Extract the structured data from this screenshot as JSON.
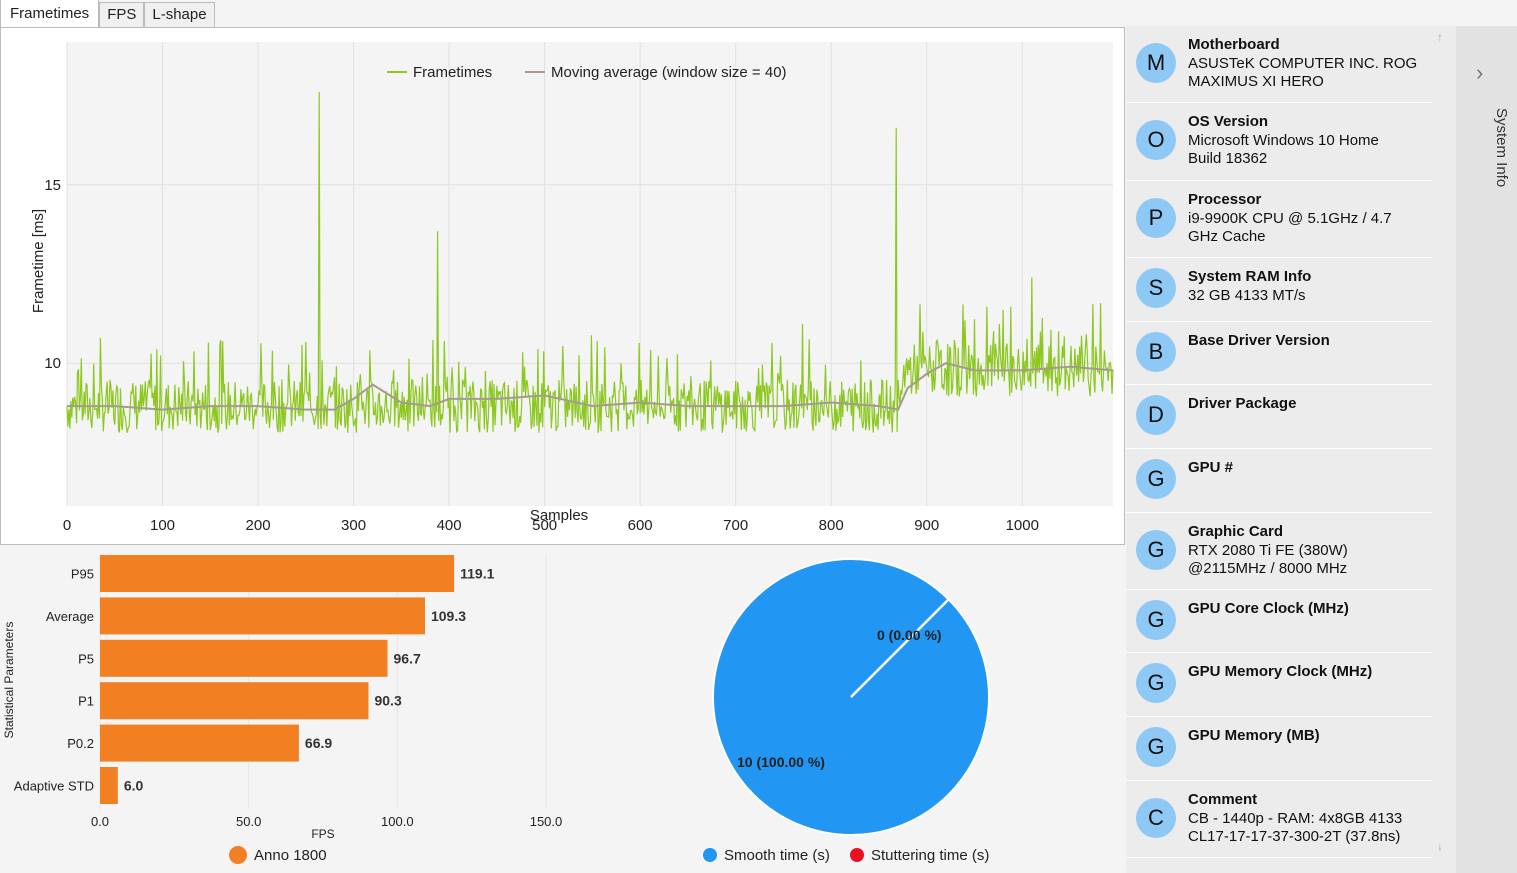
{
  "tabs": [
    "Frametimes",
    "FPS",
    "L-shape"
  ],
  "frametime_chart": {
    "ylabel": "Frametime [ms]",
    "xlabel": "Samples",
    "legend": [
      "Frametimes",
      "Moving average (window size = 40)"
    ],
    "x_ticks": [
      "0",
      "100",
      "200",
      "300",
      "400",
      "500",
      "600",
      "700",
      "800",
      "900",
      "1000"
    ],
    "y_ticks": [
      "10",
      "15"
    ],
    "colors": {
      "frametimes": "#8cc820",
      "moving_average": "#a59a90"
    }
  },
  "chart_data": [
    {
      "type": "line",
      "title": "",
      "xlabel": "Samples",
      "ylabel": "Frametime [ms]",
      "xlim": [
        0,
        1095
      ],
      "ylim": [
        6,
        19
      ],
      "series": [
        {
          "name": "Frametimes",
          "description": "noisy around 8.8 ms for samples 0-870, around 9.8 ms for 880-1095",
          "spikes": [
            [
              264,
              17.6
            ],
            [
              388,
              13.7
            ],
            [
              868,
              16.6
            ],
            [
              250,
              10.6
            ],
            [
              160,
              10.5
            ],
            [
              770,
              11.1
            ],
            [
              940,
              11.2
            ],
            [
              1010,
              12.4
            ],
            [
              970,
              10.9
            ],
            [
              910,
              10.6
            ]
          ]
        },
        {
          "name": "Moving average (window size = 40)",
          "x": [
            0,
            50,
            100,
            150,
            200,
            250,
            280,
            300,
            320,
            350,
            380,
            400,
            450,
            500,
            550,
            600,
            650,
            700,
            750,
            800,
            850,
            870,
            880,
            900,
            920,
            950,
            1000,
            1050,
            1095
          ],
          "y": [
            8.8,
            8.8,
            8.7,
            8.8,
            8.8,
            8.7,
            8.7,
            9.0,
            9.4,
            8.9,
            8.8,
            9.0,
            9.0,
            9.1,
            8.8,
            8.9,
            8.8,
            8.8,
            8.8,
            8.9,
            8.8,
            8.7,
            9.3,
            9.7,
            10.0,
            9.8,
            9.8,
            9.9,
            9.8
          ]
        }
      ]
    },
    {
      "type": "bar",
      "title": "",
      "xlabel": "FPS",
      "ylabel": "Statistical Parameters",
      "categories": [
        "P95",
        "Average",
        "P5",
        "P1",
        "P0.2",
        "Adaptive STD"
      ],
      "values": [
        119.1,
        109.3,
        96.7,
        90.3,
        66.9,
        6.0
      ],
      "value_labels": [
        "119.1",
        "109.3",
        "96.7",
        "90.3",
        "66.9",
        "6.0"
      ],
      "xlim": [
        0,
        150
      ],
      "x_ticks": [
        "0.0",
        "50.0",
        "100.0",
        "150.0"
      ],
      "legend": [
        "Anno 1800"
      ],
      "color": "#f28023"
    },
    {
      "type": "pie",
      "labels": [
        "Smooth time (s)",
        "Stuttering time (s)"
      ],
      "values": [
        10,
        0
      ],
      "slice_labels": [
        "10 (100.00 %)",
        "0 (0.00 %)"
      ],
      "colors": [
        "#2196f3",
        "#e81123"
      ]
    }
  ],
  "sidebar": {
    "items": [
      {
        "letter": "M",
        "title": "Motherboard",
        "lines": [
          "ASUSTeK COMPUTER INC. ROG",
          "MAXIMUS XI HERO"
        ]
      },
      {
        "letter": "O",
        "title": "OS Version",
        "lines": [
          "Microsoft Windows 10 Home",
          "Build 18362"
        ]
      },
      {
        "letter": "P",
        "title": "Processor",
        "lines": [
          "i9-9900K CPU @ 5.1GHz / 4.7",
          "GHz Cache"
        ]
      },
      {
        "letter": "S",
        "title": "System RAM Info",
        "lines": [
          "32 GB 4133 MT/s"
        ]
      },
      {
        "letter": "B",
        "title": "Base Driver Version",
        "lines": []
      },
      {
        "letter": "D",
        "title": "Driver Package",
        "lines": []
      },
      {
        "letter": "G",
        "title": "GPU #",
        "lines": []
      },
      {
        "letter": "G",
        "title": "Graphic Card",
        "lines": [
          "RTX 2080 Ti FE (380W)",
          "@2115MHz / 8000 MHz"
        ]
      },
      {
        "letter": "G",
        "title": "GPU Core Clock (MHz)",
        "lines": []
      },
      {
        "letter": "G",
        "title": "GPU Memory Clock (MHz)",
        "lines": []
      },
      {
        "letter": "G",
        "title": "GPU Memory (MB)",
        "lines": []
      },
      {
        "letter": "C",
        "title": "Comment",
        "lines": [
          "CB - 1440p - RAM: 4x8GB 4133",
          "CL17-17-17-37-300-2T (37.8ns)"
        ]
      }
    ],
    "flyout_label": "System Info",
    "scroll_up_icon": "arrow-up-icon",
    "scroll_down_icon": "arrow-down-icon"
  }
}
